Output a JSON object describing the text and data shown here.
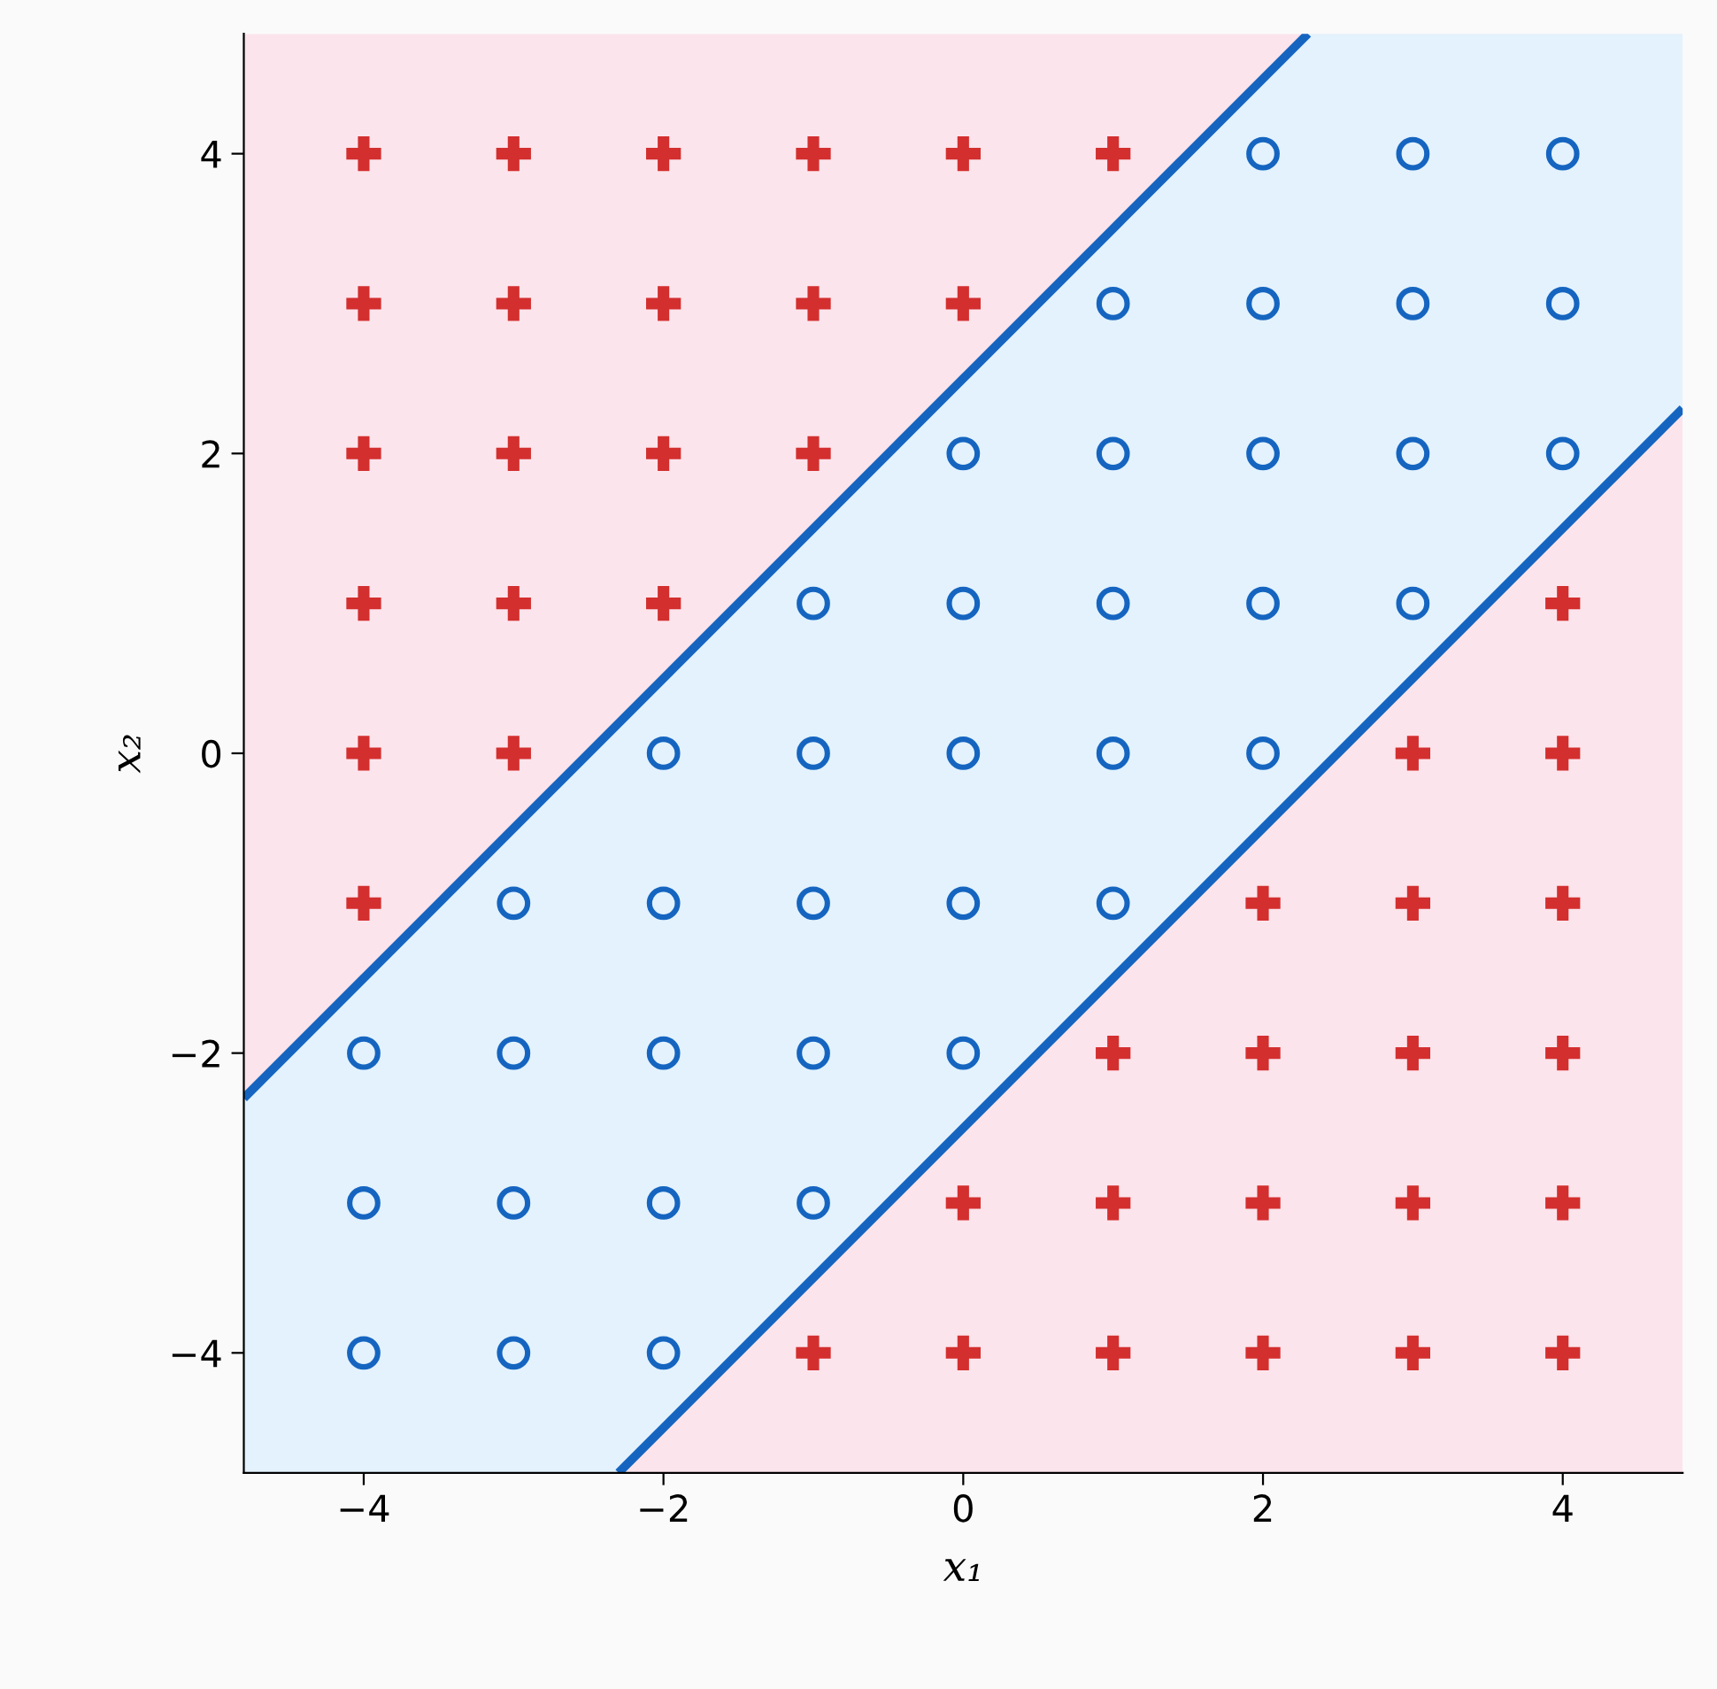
{
  "chart_data": {
    "type": "scatter",
    "xlabel": "x₁",
    "ylabel": "x₂",
    "xlim": [
      -4.8,
      4.8
    ],
    "ylim": [
      -4.8,
      4.8
    ],
    "xticks": [
      -4,
      -2,
      0,
      2,
      4
    ],
    "yticks": [
      -4,
      -2,
      0,
      2,
      4
    ],
    "grid": false,
    "series": [
      {
        "type": "line",
        "color": "#1565c0",
        "x": [
          -4.8,
          2.3
        ],
        "values": [
          -2.3,
          4.8
        ]
      },
      {
        "type": "line",
        "color": "#1565c0",
        "x": [
          -2.3,
          4.8
        ],
        "values": [
          -4.8,
          2.3
        ]
      },
      {
        "marker": "cross",
        "color": "#d32f2f",
        "x": [
          -4,
          -3,
          -2,
          -1,
          0,
          1,
          -4,
          -3,
          -2,
          -1,
          0,
          -4,
          -3,
          -2,
          -1,
          -4,
          -3,
          -2,
          4,
          -4,
          -3,
          3,
          4,
          -4,
          2,
          3,
          4,
          1,
          2,
          3,
          4,
          0,
          1,
          2,
          3,
          4,
          -1,
          0,
          1,
          2,
          3,
          4
        ],
        "values": [
          4,
          4,
          4,
          4,
          4,
          4,
          3,
          3,
          3,
          3,
          3,
          2,
          2,
          2,
          2,
          1,
          1,
          1,
          1,
          0,
          0,
          0,
          0,
          -1,
          -1,
          -1,
          -1,
          -2,
          -2,
          -2,
          -2,
          -3,
          -3,
          -3,
          -3,
          -3,
          -4,
          -4,
          -4,
          -4,
          -4,
          -4
        ]
      },
      {
        "marker": "circle",
        "color": "#1565c0",
        "x": [
          2,
          3,
          4,
          1,
          2,
          3,
          4,
          0,
          1,
          2,
          3,
          4,
          -1,
          0,
          1,
          2,
          3,
          -2,
          -1,
          0,
          1,
          2,
          -3,
          -2,
          -1,
          0,
          1,
          -4,
          -3,
          -2,
          -1,
          0,
          -4,
          -3,
          -2,
          -1,
          -4,
          -3,
          -2
        ],
        "values": [
          4,
          4,
          4,
          3,
          3,
          3,
          3,
          2,
          2,
          2,
          2,
          2,
          1,
          1,
          1,
          1,
          1,
          0,
          0,
          0,
          0,
          0,
          -1,
          -1,
          -1,
          -1,
          -1,
          -2,
          -2,
          -2,
          -2,
          -2,
          -3,
          -3,
          -3,
          -3,
          -4,
          -4,
          -4
        ]
      }
    ]
  }
}
